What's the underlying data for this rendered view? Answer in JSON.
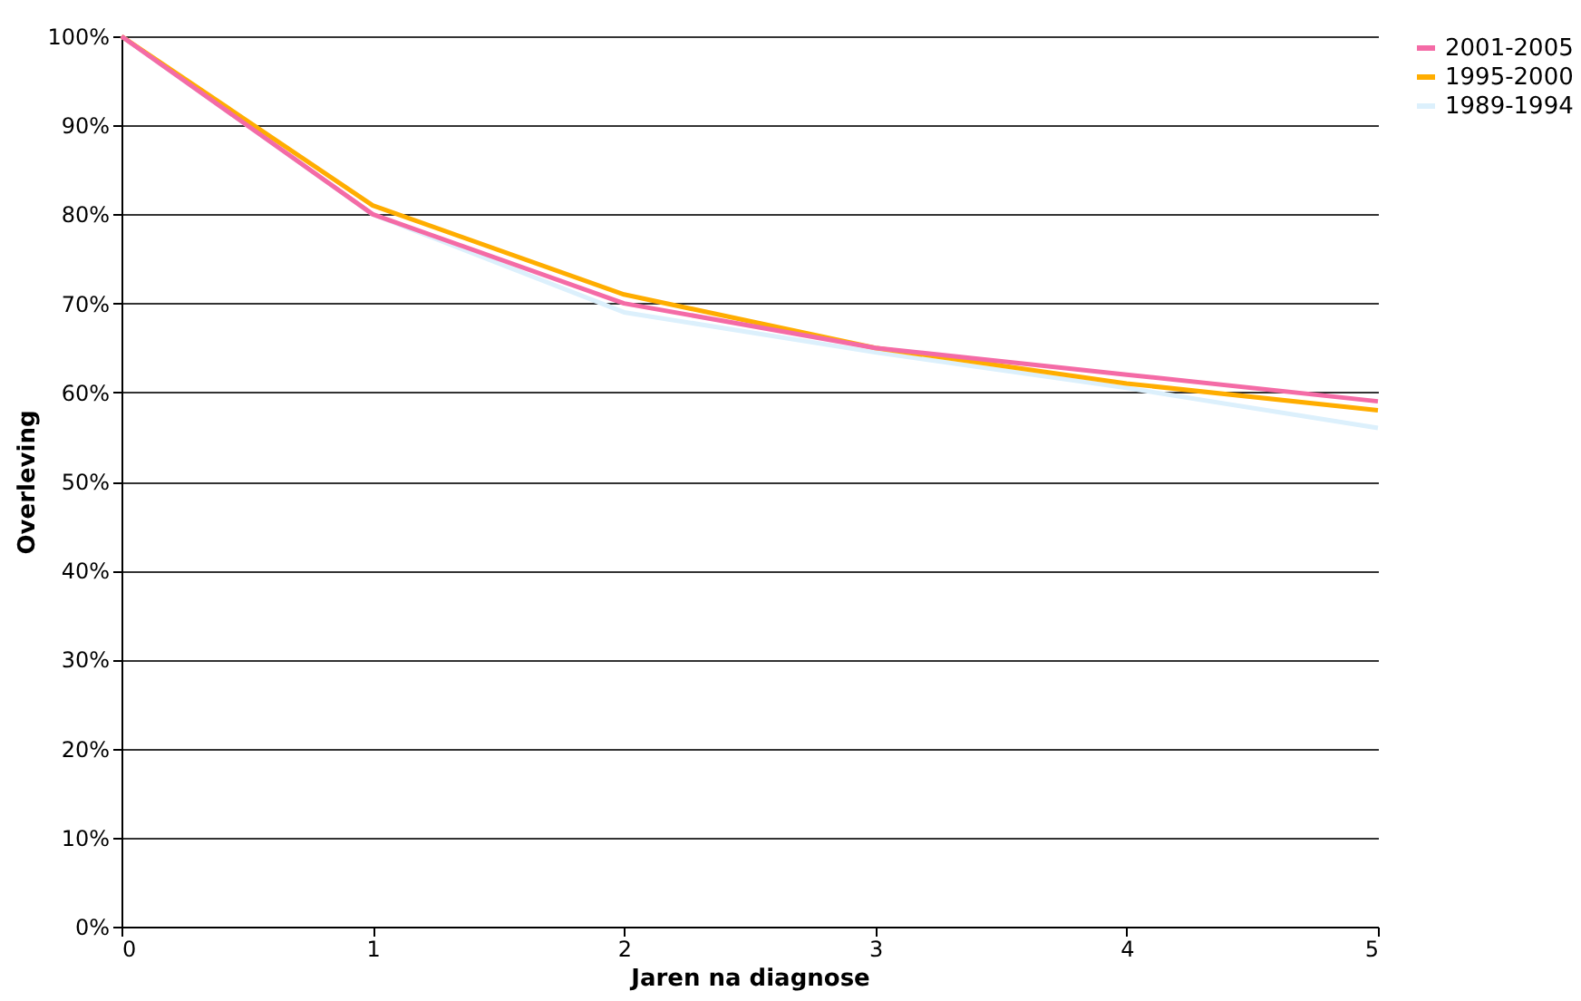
{
  "chart_data": {
    "type": "line",
    "xlabel": "Jaren na diagnose",
    "ylabel": "Overleving",
    "x": [
      0,
      1,
      2,
      3,
      4,
      5
    ],
    "xlim": [
      0,
      5
    ],
    "xticks": [
      0,
      1,
      2,
      3,
      4,
      5
    ],
    "ylim": [
      0,
      100
    ],
    "yticks": [
      {
        "value": 0,
        "label": "0%"
      },
      {
        "value": 10,
        "label": "10%"
      },
      {
        "value": 20,
        "label": "20%"
      },
      {
        "value": 30,
        "label": "30%"
      },
      {
        "value": 40,
        "label": "40%"
      },
      {
        "value": 50,
        "label": "50%"
      },
      {
        "value": 60,
        "label": "60%"
      },
      {
        "value": 70,
        "label": "70%"
      },
      {
        "value": 80,
        "label": "80%"
      },
      {
        "value": 90,
        "label": "90%"
      },
      {
        "value": 100,
        "label": "100%"
      }
    ],
    "grid": "y",
    "legend": "right",
    "marker": "none",
    "line_style": "solid",
    "series": [
      {
        "name": "2001-2005",
        "color": "#f46ba6",
        "values": [
          100,
          80,
          70,
          65,
          62,
          59
        ]
      },
      {
        "name": "1995-2000",
        "color": "#ffad00",
        "values": [
          100,
          81,
          71,
          65,
          61,
          58
        ]
      },
      {
        "name": "1989-1994",
        "color": "#dcf0fc",
        "values": [
          100,
          80,
          69,
          64.5,
          60.5,
          56
        ]
      }
    ]
  }
}
